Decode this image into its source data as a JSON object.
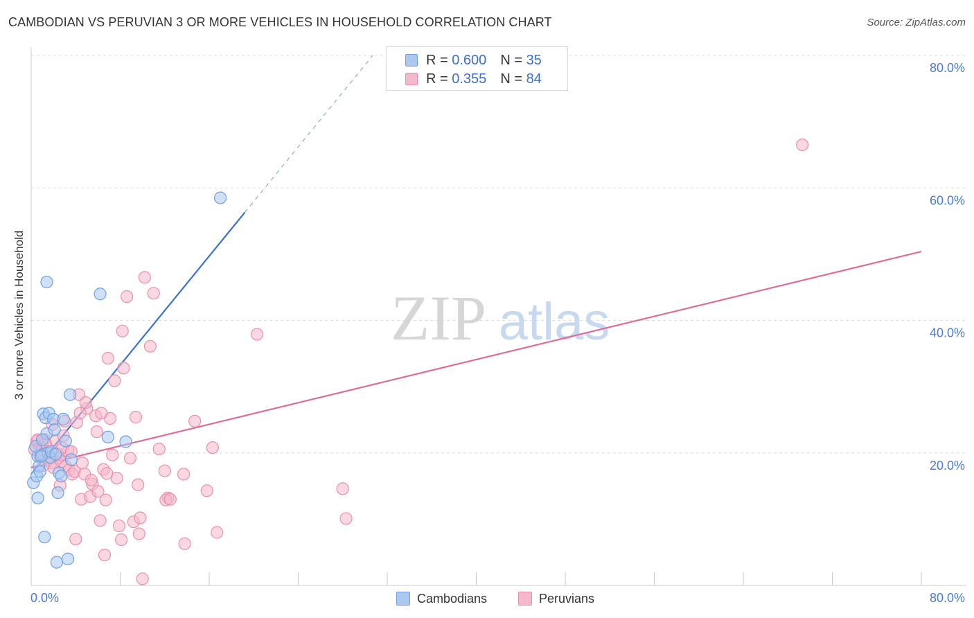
{
  "title": "CAMBODIAN VS PERUVIAN 3 OR MORE VEHICLES IN HOUSEHOLD CORRELATION CHART",
  "source": "Source: ZipAtlas.com",
  "watermark": {
    "zip": "ZIP",
    "atlas": "atlas"
  },
  "legend": {
    "rows": [
      {
        "r_label": "R =",
        "r_value": "0.600",
        "n_label": "N =",
        "n_value": "35"
      },
      {
        "r_label": "R =",
        "r_value": "0.355",
        "n_label": "N =",
        "n_value": "84"
      }
    ]
  },
  "bottom_legend": {
    "cambodians": "Cambodians",
    "peruvians": "Peruvians"
  },
  "colors": {
    "cambodian_fill": "#aac8f0",
    "cambodian_stroke": "#6f9fe0",
    "cambodian_line": "#3a72d0",
    "peruvian_fill": "#f6b8cb",
    "peruvian_stroke": "#ea8fab",
    "peruvian_line": "#e06b95",
    "tick_label": "#4a7bd0",
    "grid": "#dddddd"
  },
  "chart_data": {
    "type": "scatter",
    "title": "CAMBODIAN VS PERUVIAN 3 OR MORE VEHICLES IN HOUSEHOLD CORRELATION CHART",
    "xlabel": "",
    "ylabel": "3 or more Vehicles in Household",
    "xlim": [
      0,
      80
    ],
    "ylim": [
      0,
      80
    ],
    "x_tick_labels": [
      "0.0%",
      "80.0%"
    ],
    "y_tick_labels": [
      "20.0%",
      "40.0%",
      "60.0%",
      "80.0%"
    ],
    "y_ticks": [
      20,
      40,
      60,
      80
    ],
    "series": [
      {
        "name": "Cambodians",
        "R": 0.6,
        "N": 35,
        "trend": {
          "x": [
            0,
            19.2
          ],
          "y": [
            16.8,
            56.3
          ],
          "dashed_to": [
            30.7,
            80
          ]
        },
        "points": [
          [
            0.2,
            15.5
          ],
          [
            0.5,
            16.5
          ],
          [
            0.6,
            19.5
          ],
          [
            0.7,
            18.0
          ],
          [
            0.8,
            17.2
          ],
          [
            1.0,
            19.8
          ],
          [
            0.6,
            13.2
          ],
          [
            1.1,
            25.9
          ],
          [
            1.3,
            25.3
          ],
          [
            1.4,
            22.9
          ],
          [
            1.5,
            20.0
          ],
          [
            1.7,
            19.3
          ],
          [
            1.2,
            7.3
          ],
          [
            1.6,
            26.0
          ],
          [
            2.0,
            25.1
          ],
          [
            2.1,
            23.5
          ],
          [
            2.4,
            14.0
          ],
          [
            2.5,
            17.0
          ],
          [
            2.7,
            16.5
          ],
          [
            2.9,
            25.1
          ],
          [
            3.1,
            21.8
          ],
          [
            3.5,
            28.8
          ],
          [
            3.6,
            19.0
          ],
          [
            1.4,
            45.8
          ],
          [
            6.2,
            44.0
          ],
          [
            6.9,
            22.4
          ],
          [
            8.5,
            21.7
          ],
          [
            17.0,
            58.5
          ],
          [
            2.3,
            3.5
          ],
          [
            3.3,
            4.0
          ],
          [
            0.9,
            19.5
          ],
          [
            1.8,
            20.2
          ],
          [
            0.4,
            21.0
          ],
          [
            1.0,
            22.0
          ],
          [
            2.2,
            19.8
          ]
        ]
      },
      {
        "name": "Peruvians",
        "R": 0.355,
        "N": 84,
        "trend": {
          "x": [
            0,
            80
          ],
          "y": [
            17.8,
            50.4
          ]
        },
        "points": [
          [
            0.3,
            20.5
          ],
          [
            0.5,
            21.8
          ],
          [
            0.7,
            21.2
          ],
          [
            0.8,
            19.5
          ],
          [
            1.0,
            20.8
          ],
          [
            1.2,
            22.0
          ],
          [
            1.3,
            21.5
          ],
          [
            1.5,
            20.2
          ],
          [
            1.6,
            19.0
          ],
          [
            1.8,
            18.5
          ],
          [
            2.0,
            17.8
          ],
          [
            2.2,
            21.9
          ],
          [
            2.4,
            19.9
          ],
          [
            2.5,
            19.3
          ],
          [
            2.7,
            18.7
          ],
          [
            2.9,
            22.6
          ],
          [
            3.0,
            24.8
          ],
          [
            3.1,
            18.0
          ],
          [
            3.4,
            17.4
          ],
          [
            3.7,
            16.8
          ],
          [
            3.9,
            17.2
          ],
          [
            4.1,
            24.6
          ],
          [
            4.3,
            28.8
          ],
          [
            4.5,
            13.0
          ],
          [
            4.6,
            18.5
          ],
          [
            4.8,
            16.8
          ],
          [
            5.0,
            26.7
          ],
          [
            5.3,
            13.4
          ],
          [
            5.5,
            15.3
          ],
          [
            5.8,
            25.6
          ],
          [
            6.0,
            14.2
          ],
          [
            6.2,
            9.8
          ],
          [
            6.5,
            17.5
          ],
          [
            6.7,
            12.9
          ],
          [
            6.9,
            34.3
          ],
          [
            7.1,
            25.2
          ],
          [
            7.3,
            19.7
          ],
          [
            7.5,
            30.9
          ],
          [
            7.7,
            16.2
          ],
          [
            7.9,
            9.0
          ],
          [
            8.1,
            6.9
          ],
          [
            8.3,
            32.8
          ],
          [
            8.6,
            43.6
          ],
          [
            8.9,
            19.2
          ],
          [
            9.2,
            9.6
          ],
          [
            9.4,
            25.4
          ],
          [
            9.6,
            15.2
          ],
          [
            9.8,
            10.2
          ],
          [
            10.2,
            46.5
          ],
          [
            10.7,
            36.1
          ],
          [
            11.0,
            44.1
          ],
          [
            11.5,
            20.6
          ],
          [
            12.0,
            17.3
          ],
          [
            12.3,
            13.2
          ],
          [
            13.7,
            16.8
          ],
          [
            14.7,
            24.8
          ],
          [
            15.8,
            14.3
          ],
          [
            16.3,
            20.8
          ],
          [
            16.7,
            8.0
          ],
          [
            20.3,
            37.9
          ],
          [
            28.0,
            14.6
          ],
          [
            28.3,
            10.1
          ],
          [
            69.3,
            66.5
          ],
          [
            4.0,
            7.0
          ],
          [
            5.4,
            15.9
          ],
          [
            6.3,
            26.0
          ],
          [
            6.6,
            4.6
          ],
          [
            8.2,
            38.4
          ],
          [
            9.7,
            7.8
          ],
          [
            10.0,
            1.0
          ],
          [
            12.1,
            12.9
          ],
          [
            13.8,
            6.3
          ],
          [
            4.9,
            27.6
          ],
          [
            3.3,
            20.3
          ],
          [
            2.6,
            15.1
          ],
          [
            1.9,
            24.3
          ],
          [
            4.4,
            26.0
          ],
          [
            1.1,
            18.1
          ],
          [
            2.8,
            20.8
          ],
          [
            3.6,
            20.2
          ],
          [
            5.9,
            23.2
          ],
          [
            6.8,
            16.9
          ],
          [
            12.5,
            13.0
          ],
          [
            0.6,
            22.0
          ]
        ]
      }
    ]
  }
}
